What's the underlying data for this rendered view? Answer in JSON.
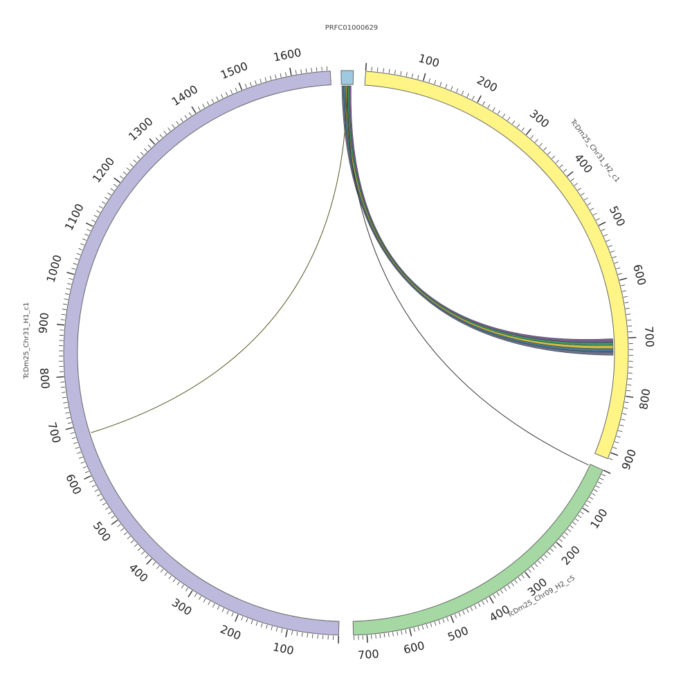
{
  "segments": [
    {
      "id": "prfc",
      "name": "PRFC01000629",
      "color": "#9ecae1",
      "ticks": []
    },
    {
      "id": "chr31_h2",
      "name": "TcDm25_Chr31_H2_c1",
      "color": "#fff587",
      "ticks": [
        "100",
        "200",
        "300",
        "400",
        "500",
        "600",
        "700",
        "800",
        "900"
      ]
    },
    {
      "id": "chr09_h2",
      "name": "TcDm25_Chr09_H2_c5",
      "color": "#a5d8a2",
      "ticks": [
        "100",
        "200",
        "300",
        "400",
        "500",
        "600",
        "700"
      ]
    },
    {
      "id": "chr31_h1",
      "name": "TcDm25_Chr31_H1_c1",
      "color": "#bcb9dc",
      "ticks": [
        "100",
        "200",
        "300",
        "400",
        "500",
        "600",
        "700",
        "800",
        "900",
        "1000",
        "1100",
        "1200",
        "1300",
        "1400",
        "1500",
        "1600"
      ]
    }
  ],
  "links": [
    {
      "from": "PRFC01000629",
      "to": "TcDm25_Chr31_H2_c1",
      "to_range": [
        700,
        730
      ],
      "kind": "ribbon bundle",
      "colors": [
        "#5e6580",
        "#3c6e8a",
        "#c9b83a",
        "#2e8b57",
        "#6b4f8a"
      ]
    },
    {
      "from": "PRFC01000629",
      "to": "TcDm25_Chr09_H2_c5",
      "to_position": 0,
      "kind": "line",
      "colors": [
        "#333333"
      ]
    },
    {
      "from": "PRFC01000629",
      "to": "TcDm25_Chr31_H1_c1",
      "to_position": 680,
      "kind": "line",
      "colors": [
        "#555522"
      ]
    }
  ]
}
